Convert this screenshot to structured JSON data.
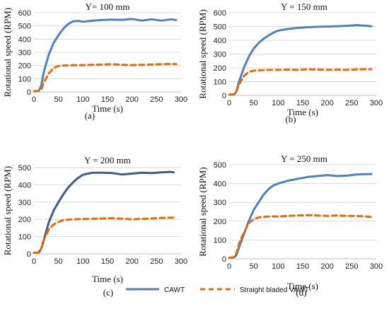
{
  "figure": {
    "x_label": "Time (s)",
    "y_label": "Rotational speed (RPM)",
    "legend": [
      {
        "name": "CAWT",
        "color": "#4F81BD",
        "style": "solid"
      },
      {
        "name": "Straight bladed VAWT",
        "color": "#E46C0A",
        "style": "dashed"
      }
    ]
  },
  "chart_data": [
    {
      "type": "line",
      "panel_label": "(a)",
      "title": "Y= 100 mm",
      "xlabel": "Time (s)",
      "ylabel": "Rotational speed (RPM)",
      "xlim": [
        0,
        300
      ],
      "ylim": [
        0,
        600
      ],
      "xticks": [
        0,
        50,
        100,
        150,
        200,
        250,
        300
      ],
      "yticks": [
        0,
        100,
        200,
        300,
        400,
        500,
        600
      ],
      "grid": "horizontal",
      "series": [
        {
          "name": "CAWT",
          "color": "#4F81BD",
          "x": [
            0,
            10,
            15,
            20,
            30,
            40,
            50,
            60,
            70,
            80,
            90,
            100,
            120,
            140,
            160,
            180,
            200,
            220,
            240,
            260,
            280,
            290
          ],
          "y": [
            5,
            8,
            50,
            150,
            280,
            370,
            430,
            480,
            515,
            535,
            538,
            532,
            540,
            545,
            548,
            546,
            553,
            540,
            550,
            540,
            550,
            545
          ]
        },
        {
          "name": "Straight bladed VAWT",
          "color": "#E46C0A",
          "x": [
            0,
            10,
            15,
            20,
            30,
            40,
            50,
            60,
            80,
            100,
            120,
            140,
            160,
            180,
            200,
            220,
            240,
            260,
            280,
            290
          ],
          "y": [
            5,
            8,
            20,
            70,
            140,
            180,
            197,
            200,
            202,
            203,
            205,
            208,
            210,
            205,
            203,
            205,
            208,
            210,
            212,
            210
          ]
        }
      ]
    },
    {
      "type": "line",
      "panel_label": "(b)",
      "title": "Y = 150 mm",
      "xlabel": "Time (s)",
      "ylabel": "Rotational speed (RPM)",
      "xlim": [
        0,
        300
      ],
      "ylim": [
        0,
        600
      ],
      "xticks": [
        0,
        50,
        100,
        150,
        200,
        250,
        300
      ],
      "yticks": [
        0,
        100,
        200,
        300,
        400,
        500,
        600
      ],
      "grid": "horizontal",
      "series": [
        {
          "name": "CAWT",
          "color": "#4F81BD",
          "x": [
            0,
            10,
            15,
            20,
            30,
            40,
            50,
            60,
            70,
            80,
            90,
            100,
            120,
            140,
            160,
            180,
            200,
            220,
            240,
            260,
            280,
            290
          ],
          "y": [
            5,
            8,
            30,
            100,
            200,
            280,
            340,
            380,
            410,
            435,
            455,
            470,
            482,
            490,
            495,
            498,
            500,
            502,
            505,
            510,
            505,
            502
          ]
        },
        {
          "name": "Straight bladed VAWT",
          "color": "#E46C0A",
          "x": [
            0,
            10,
            15,
            20,
            30,
            40,
            50,
            60,
            80,
            100,
            120,
            140,
            160,
            180,
            200,
            220,
            240,
            260,
            280,
            290
          ],
          "y": [
            5,
            8,
            30,
            80,
            140,
            170,
            180,
            182,
            185,
            185,
            187,
            185,
            190,
            188,
            185,
            187,
            185,
            188,
            190,
            190
          ]
        }
      ]
    },
    {
      "type": "line",
      "panel_label": "(c)",
      "title": "Y = 200 mm",
      "xlabel": "Time (s)",
      "ylabel": "Rotational speed (RPM)",
      "xlim": [
        0,
        300
      ],
      "ylim": [
        0,
        500
      ],
      "xticks": [
        0,
        50,
        100,
        150,
        200,
        250,
        300
      ],
      "yticks": [
        0,
        100,
        200,
        300,
        400,
        500
      ],
      "grid": "horizontal",
      "series": [
        {
          "name": "CAWT",
          "color": "#3F5C8A",
          "x": [
            0,
            10,
            15,
            20,
            30,
            40,
            50,
            60,
            70,
            80,
            90,
            100,
            110,
            120,
            140,
            160,
            180,
            200,
            220,
            240,
            260,
            280,
            285
          ],
          "y": [
            5,
            8,
            30,
            80,
            180,
            250,
            300,
            345,
            385,
            415,
            440,
            458,
            465,
            470,
            470,
            468,
            460,
            465,
            470,
            468,
            472,
            475,
            472
          ]
        },
        {
          "name": "Straight bladed VAWT",
          "color": "#E46C0A",
          "x": [
            0,
            10,
            15,
            20,
            30,
            40,
            50,
            60,
            80,
            100,
            120,
            140,
            160,
            180,
            200,
            220,
            240,
            260,
            280,
            285
          ],
          "y": [
            5,
            8,
            30,
            80,
            140,
            170,
            185,
            195,
            200,
            202,
            203,
            205,
            206,
            204,
            200,
            203,
            205,
            208,
            210,
            210
          ]
        }
      ]
    },
    {
      "type": "line",
      "panel_label": "(d)",
      "title": "Y = 250 mm",
      "xlabel": "Time (s)",
      "ylabel": "Rotational speed (RPM)",
      "xlim": [
        0,
        300
      ],
      "ylim": [
        0,
        500
      ],
      "xticks": [
        0,
        50,
        100,
        150,
        200,
        250,
        300
      ],
      "yticks": [
        0,
        100,
        200,
        300,
        400,
        500
      ],
      "grid": "horizontal",
      "series": [
        {
          "name": "CAWT",
          "color": "#4F81BD",
          "x": [
            0,
            10,
            15,
            20,
            30,
            40,
            50,
            60,
            70,
            80,
            90,
            100,
            120,
            140,
            160,
            180,
            200,
            220,
            240,
            260,
            280,
            290
          ],
          "y": [
            5,
            8,
            20,
            60,
            130,
            200,
            260,
            300,
            340,
            370,
            390,
            400,
            415,
            425,
            435,
            440,
            445,
            440,
            442,
            448,
            450,
            450
          ]
        },
        {
          "name": "Straight bladed VAWT",
          "color": "#E46C0A",
          "x": [
            0,
            10,
            15,
            20,
            30,
            40,
            50,
            60,
            80,
            100,
            120,
            140,
            160,
            180,
            200,
            220,
            240,
            260,
            280,
            290
          ],
          "y": [
            5,
            8,
            30,
            80,
            140,
            190,
            210,
            220,
            225,
            225,
            228,
            230,
            232,
            230,
            228,
            230,
            228,
            228,
            225,
            222
          ]
        }
      ]
    }
  ]
}
